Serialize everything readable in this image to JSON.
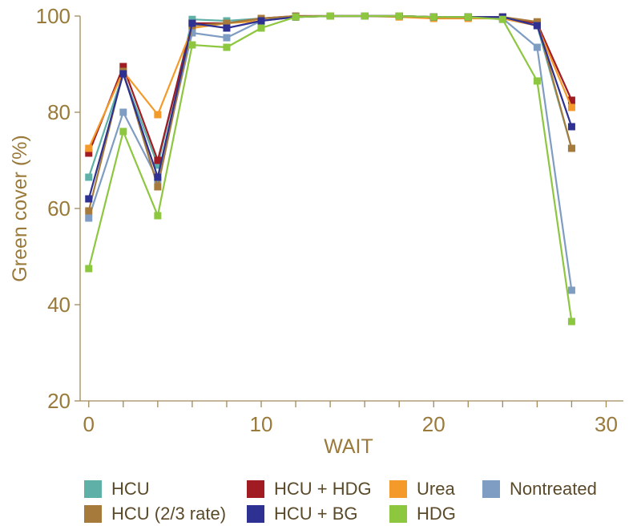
{
  "chart_data": {
    "type": "line",
    "title": "",
    "xlabel": "WAIT",
    "ylabel": "Green cover (%)",
    "xlim": [
      -0.5,
      31
    ],
    "ylim": [
      20,
      100
    ],
    "xticks": [
      0,
      10,
      20,
      30
    ],
    "yticks": [
      20,
      40,
      60,
      80,
      100
    ],
    "x": [
      0,
      2,
      4,
      6,
      8,
      10,
      12,
      14,
      16,
      18,
      20,
      22,
      24,
      26,
      28
    ],
    "series": [
      {
        "name": "HCU",
        "color": "#5fb0a6",
        "values": [
          66.5,
          88.0,
          69.0,
          99.3,
          99.0,
          99.5,
          99.9,
          100,
          100,
          100,
          99.8,
          99.8,
          99.5,
          98.0,
          72.5
        ]
      },
      {
        "name": "HCU + HDG",
        "color": "#a01c22",
        "values": [
          71.5,
          89.5,
          70.0,
          98.5,
          98.5,
          99.5,
          100,
          100,
          100,
          100,
          99.8,
          99.8,
          99.8,
          98.5,
          82.5
        ]
      },
      {
        "name": "Urea",
        "color": "#f39a2b",
        "values": [
          72.5,
          88.5,
          79.5,
          97.5,
          98.5,
          99.0,
          99.8,
          100,
          100,
          99.8,
          99.5,
          99.5,
          99.5,
          98.0,
          81.0
        ]
      },
      {
        "name": "Nontreated",
        "color": "#7f9cc2",
        "values": [
          58.0,
          80.0,
          66.0,
          96.5,
          95.5,
          99.0,
          99.8,
          100,
          100,
          100,
          99.8,
          99.8,
          99.5,
          93.5,
          43.0
        ]
      },
      {
        "name": "HCU (2/3 rate)",
        "color": "#a57a3a",
        "values": [
          59.5,
          88.5,
          64.5,
          98.0,
          98.5,
          99.5,
          100,
          100,
          100,
          100,
          99.8,
          99.8,
          99.8,
          98.8,
          72.5
        ]
      },
      {
        "name": "HCU + BG",
        "color": "#2e3192",
        "values": [
          62.0,
          88.0,
          66.5,
          98.5,
          97.5,
          99.0,
          99.8,
          100,
          100,
          100,
          99.8,
          99.8,
          99.8,
          98.0,
          77.0
        ]
      },
      {
        "name": "HDG",
        "color": "#8dc63f",
        "values": [
          47.5,
          76.0,
          58.5,
          94.0,
          93.5,
          97.5,
          99.8,
          100,
          100,
          100,
          99.8,
          99.8,
          99.3,
          86.5,
          36.5
        ]
      }
    ],
    "grid": false,
    "legend_position": "bottom"
  },
  "legend": {
    "items": [
      {
        "label": "HCU",
        "color": "#5fb0a6"
      },
      {
        "label": "HCU + HDG",
        "color": "#a01c22"
      },
      {
        "label": "Urea",
        "color": "#f39a2b"
      },
      {
        "label": "Nontreated",
        "color": "#7f9cc2"
      },
      {
        "label": "HCU (2/3 rate)",
        "color": "#a57a3a"
      },
      {
        "label": "HCU + BG",
        "color": "#2e3192"
      },
      {
        "label": "HDG",
        "color": "#8dc63f"
      }
    ]
  }
}
